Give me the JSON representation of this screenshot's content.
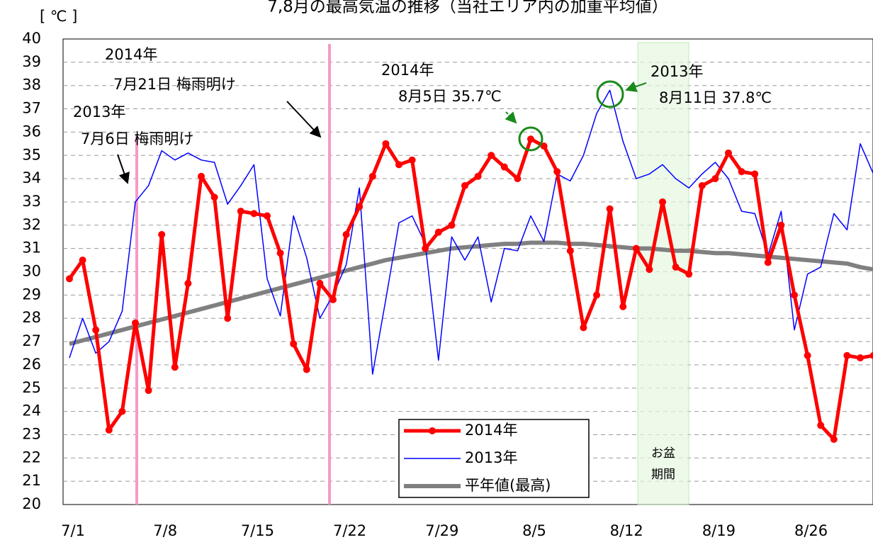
{
  "chart_data": {
    "type": "line",
    "title": "7,8月の最高気温の推移（当社エリア内の加重平均値）",
    "y_label": "[ ℃ ]",
    "categories": [
      "7/1",
      null,
      null,
      null,
      null,
      null,
      null,
      "7/8",
      null,
      null,
      null,
      null,
      null,
      null,
      "7/15",
      null,
      null,
      null,
      null,
      null,
      null,
      "7/22",
      null,
      null,
      null,
      null,
      null,
      null,
      "7/29",
      null,
      null,
      null,
      null,
      null,
      null,
      "8/5",
      null,
      null,
      null,
      null,
      null,
      null,
      "8/12",
      null,
      null,
      null,
      null,
      null,
      null,
      "8/19",
      null,
      null,
      null,
      null,
      null,
      null,
      "8/26",
      null,
      null,
      null,
      null,
      null
    ],
    "series": [
      {
        "name": "2014年",
        "color": "#ff0000",
        "values": [
          29.7,
          30.5,
          27.5,
          23.2,
          24.0,
          27.8,
          24.9,
          31.6,
          25.9,
          29.5,
          34.1,
          33.2,
          28.0,
          32.6,
          32.5,
          32.4,
          30.8,
          26.9,
          25.8,
          29.5,
          28.8,
          31.6,
          32.8,
          34.1,
          35.5,
          34.6,
          34.8,
          31.0,
          31.7,
          32.0,
          33.7,
          34.1,
          35.0,
          34.5,
          34.0,
          35.7,
          35.4,
          34.3,
          30.9,
          27.6,
          29.0,
          32.7,
          28.5,
          31.0,
          30.1,
          33.0,
          30.2,
          29.9,
          33.7,
          34.0,
          35.1,
          34.3,
          34.2,
          30.4,
          32.0,
          29.0,
          26.4,
          23.4,
          22.8,
          26.4,
          26.3,
          26.4
        ]
      },
      {
        "name": "2013年",
        "color": "#0000ff",
        "values": [
          26.3,
          28.0,
          26.5,
          27.0,
          28.3,
          33.0,
          33.7,
          35.2,
          34.8,
          35.1,
          34.8,
          34.7,
          32.9,
          33.7,
          34.6,
          29.7,
          28.1,
          32.4,
          30.6,
          28.0,
          29.0,
          30.3,
          33.6,
          25.6,
          28.8,
          32.1,
          32.4,
          31.2,
          26.2,
          31.5,
          30.5,
          31.5,
          28.7,
          31.0,
          30.9,
          32.4,
          31.3,
          34.2,
          33.9,
          35.0,
          36.8,
          37.8,
          35.6,
          34.0,
          34.2,
          34.6,
          34.0,
          33.6,
          34.2,
          34.7,
          34.0,
          32.6,
          32.5,
          30.7,
          32.6,
          27.5,
          29.9,
          30.2,
          32.5,
          31.8,
          35.5,
          34.2
        ]
      },
      {
        "name": "平年値(最高)",
        "color": "#808080",
        "values": [
          26.9,
          27.05,
          27.2,
          27.35,
          27.5,
          27.65,
          27.8,
          27.95,
          28.1,
          28.25,
          28.4,
          28.55,
          28.7,
          28.85,
          29.0,
          29.15,
          29.3,
          29.45,
          29.6,
          29.75,
          29.9,
          30.05,
          30.2,
          30.35,
          30.5,
          30.6,
          30.7,
          30.8,
          30.9,
          31.0,
          31.05,
          31.1,
          31.15,
          31.2,
          31.2,
          31.25,
          31.25,
          31.25,
          31.2,
          31.2,
          31.15,
          31.1,
          31.05,
          31.0,
          31.0,
          30.95,
          30.9,
          30.9,
          30.85,
          30.8,
          30.8,
          30.75,
          30.7,
          30.65,
          30.6,
          30.55,
          30.5,
          30.45,
          30.4,
          30.35,
          30.2,
          30.1
        ]
      }
    ],
    "ylim": [
      20,
      40
    ],
    "yticks": [
      20,
      21,
      22,
      23,
      24,
      25,
      26,
      27,
      28,
      29,
      30,
      31,
      32,
      33,
      34,
      35,
      36,
      37,
      38,
      39,
      40
    ],
    "grid": true,
    "annotations": [
      "2014年",
      "7月21日 梅雨明け",
      "2013年",
      "7月6日 梅雨明け",
      "2014年",
      "8月5日 35.7℃",
      "2013年",
      "8月11日 37.8℃",
      "お盆",
      "期間"
    ]
  }
}
